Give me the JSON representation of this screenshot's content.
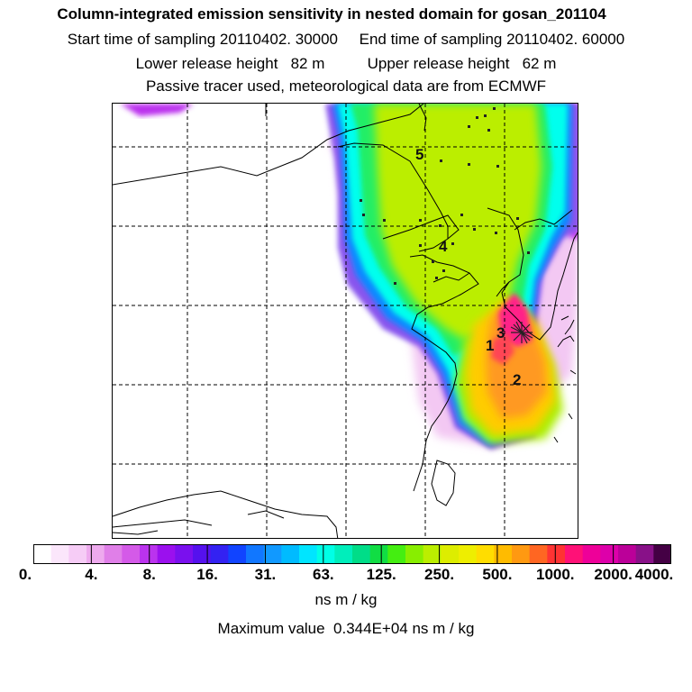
{
  "title_lines": {
    "line1": "Column-integrated emission sensitivity in nested domain for gosan_201104",
    "line2": "Start time of sampling 20110402. 30000     End time of sampling 20110402. 60000",
    "line3": "Lower release height   82 m          Upper release height   62 m",
    "line4": "Passive tracer used, meteorological data are from ECMWF"
  },
  "map": {
    "receptor_marker": "star-marker",
    "release_labels": [
      "1",
      "2",
      "3",
      "4",
      "5"
    ]
  },
  "colorbar": {
    "colors": [
      "#ffffff",
      "#fbe6fb",
      "#f6ccf6",
      "#eeaaee",
      "#e07fe8",
      "#d45ae8",
      "#bb33ee",
      "#9b10ee",
      "#7a10ee",
      "#5511ee",
      "#3322f2",
      "#1144ff",
      "#1177ff",
      "#1199ff",
      "#00bbff",
      "#00e5ff",
      "#00ffe6",
      "#00eebb",
      "#00dd88",
      "#11dd44",
      "#44ee11",
      "#88ee00",
      "#bbee00",
      "#dded00",
      "#eeee00",
      "#ffdd00",
      "#ffbb00",
      "#ff9911",
      "#ff6622",
      "#ff3333",
      "#ff1177",
      "#ee0099",
      "#dd00aa",
      "#bb0099",
      "#881188",
      "#440044"
    ],
    "tick_labels": [
      "0.",
      "4.",
      "8.",
      "16.",
      "31.",
      "63.",
      "125.",
      "250.",
      "500.",
      "1000.",
      "2000.",
      "4000."
    ],
    "units": "ns m / kg"
  },
  "max_value_line": "Maximum value  0.344E+04 ns m / kg"
}
